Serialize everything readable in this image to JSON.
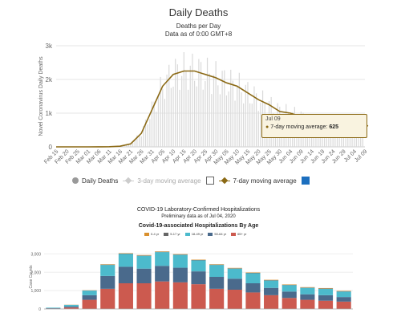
{
  "top_chart": {
    "title": "Daily Deaths",
    "subtitle": "Deaths per Day",
    "data_note": "Data as of 0:00 GMT+8",
    "ylabel": "Novel Coronavirus Daily Deaths",
    "yticks": [
      "0",
      "1k",
      "2k",
      "3k"
    ],
    "xticks": [
      "Feb 15",
      "Feb 20",
      "Feb 25",
      "Mar 01",
      "Mar 06",
      "Mar 11",
      "Mar 16",
      "Mar 21",
      "Mar 26",
      "Mar 31",
      "Apr 05",
      "Apr 10",
      "Apr 15",
      "Apr 20",
      "Apr 25",
      "Apr 30",
      "May 05",
      "May 10",
      "May 15",
      "May 20",
      "May 25",
      "May 30",
      "Jun 04",
      "Jun 09",
      "Jun 14",
      "Jun 19",
      "Jun 24",
      "Jun 29",
      "Jul 04",
      "Jul 09"
    ],
    "legend": {
      "daily": "Daily Deaths",
      "three_day": "3-day moving average",
      "seven_day": "7-day moving average"
    },
    "tooltip": {
      "date": "Jul 09",
      "label": "7-day moving average:",
      "value": "625"
    },
    "colors": {
      "bars": "#d9d9d9",
      "line": "#8b6914",
      "checkbox": "#1c6fbf"
    }
  },
  "bottom_chart": {
    "title": "COVID-19 Laboratory-Confirmed Hospitalizations",
    "subtitle": "Preliminary data as of Jul 04, 2020",
    "chart_title": "Covid-19-associated Hospitalizations By Age",
    "age_legend": [
      {
        "label": "0-4 yr",
        "color": "#d9902e"
      },
      {
        "label": "5-17 yr",
        "color": "#666666"
      },
      {
        "label": "18-49 yr",
        "color": "#4cbacc"
      },
      {
        "label": "50-64 yr",
        "color": "#4a6a8c"
      },
      {
        "label": "65+ yr",
        "color": "#cc5a4f"
      }
    ],
    "ylabel": "Case Counts",
    "yticks": [
      "0",
      "1,000",
      "2,000",
      "3,000"
    ]
  },
  "chart_data": [
    {
      "type": "bar",
      "title": "Daily Deaths",
      "subtitle": "Deaths per Day",
      "ylabel": "Novel Coronavirus Daily Deaths",
      "ylim": [
        0,
        3000
      ],
      "x": [
        "Feb 15",
        "Feb 20",
        "Feb 25",
        "Mar 01",
        "Mar 06",
        "Mar 11",
        "Mar 16",
        "Mar 21",
        "Mar 26",
        "Mar 31",
        "Apr 05",
        "Apr 10",
        "Apr 15",
        "Apr 20",
        "Apr 25",
        "Apr 30",
        "May 05",
        "May 10",
        "May 15",
        "May 20",
        "May 25",
        "May 30",
        "Jun 04",
        "Jun 09",
        "Jun 14",
        "Jun 19",
        "Jun 24",
        "Jun 29",
        "Jul 04",
        "Jul 09"
      ],
      "series": [
        {
          "name": "7-day moving average",
          "values": [
            0,
            0,
            0,
            0,
            1,
            5,
            20,
            90,
            400,
            1100,
            1800,
            2150,
            2250,
            2250,
            2150,
            2050,
            1900,
            1800,
            1600,
            1400,
            1250,
            1050,
            1000,
            900,
            750,
            650,
            600,
            550,
            560,
            625
          ]
        }
      ]
    },
    {
      "type": "bar",
      "stacked": true,
      "title": "Covid-19-associated Hospitalizations By Age",
      "ylabel": "Case Counts",
      "ylim": [
        0,
        3500
      ],
      "series": [
        {
          "name": "0-4 yr",
          "color": "#d9902e",
          "values": [
            0,
            5,
            10,
            20,
            20,
            20,
            20,
            20,
            20,
            20,
            20,
            20,
            20,
            20,
            20,
            20,
            20
          ]
        },
        {
          "name": "5-17 yr",
          "color": "#666666",
          "values": [
            0,
            5,
            10,
            20,
            20,
            20,
            20,
            20,
            20,
            20,
            20,
            20,
            20,
            20,
            20,
            20,
            20
          ]
        },
        {
          "name": "18-49 yr",
          "color": "#4cbacc",
          "values": [
            30,
            80,
            250,
            600,
            700,
            700,
            750,
            700,
            600,
            650,
            550,
            550,
            400,
            350,
            350,
            350,
            300
          ]
        },
        {
          "name": "50-64 yr",
          "color": "#4a6a8c",
          "values": [
            20,
            60,
            250,
            700,
            900,
            800,
            850,
            800,
            700,
            650,
            600,
            500,
            400,
            350,
            300,
            300,
            250
          ]
        },
        {
          "name": "65+ yr",
          "color": "#cc5a4f",
          "values": [
            20,
            80,
            500,
            1100,
            1400,
            1400,
            1500,
            1450,
            1350,
            1100,
            1050,
            900,
            750,
            600,
            500,
            450,
            400
          ]
        }
      ]
    }
  ]
}
